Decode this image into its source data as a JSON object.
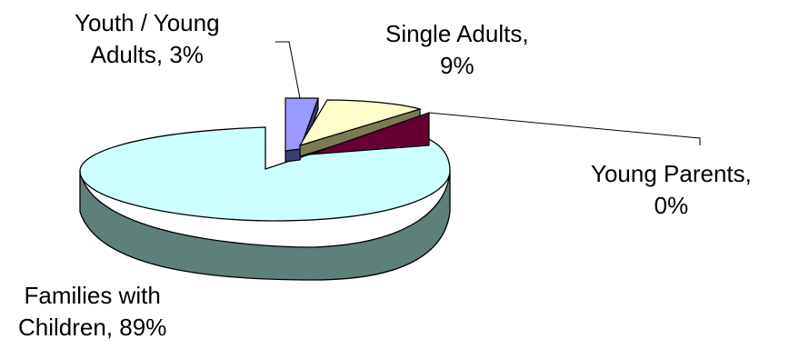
{
  "chart_data": {
    "type": "pie",
    "title": "",
    "style": "3d-exploded",
    "slices": [
      {
        "label_line1": "Families with",
        "label_line2": "Children, 89%",
        "category": "Families with Children",
        "value": 89,
        "color": "#ccffff",
        "side_color": "#5f7f7a"
      },
      {
        "label_line1": "Youth / Young",
        "label_line2": "Adults, 3%",
        "category": "Youth / Young Adults",
        "value": 3,
        "color": "#9999ff",
        "side_color": "#3b3b78"
      },
      {
        "label_line1": "Single Adults,",
        "label_line2": "9%",
        "category": "Single Adults",
        "value": 9,
        "color": "#ffffcc",
        "side_color": "#7a7a55"
      },
      {
        "label_line1": "Young Parents,",
        "label_line2": "0%",
        "category": "Young Parents",
        "value": 0,
        "color": "#660033",
        "side_color": "#3a001c"
      }
    ]
  }
}
